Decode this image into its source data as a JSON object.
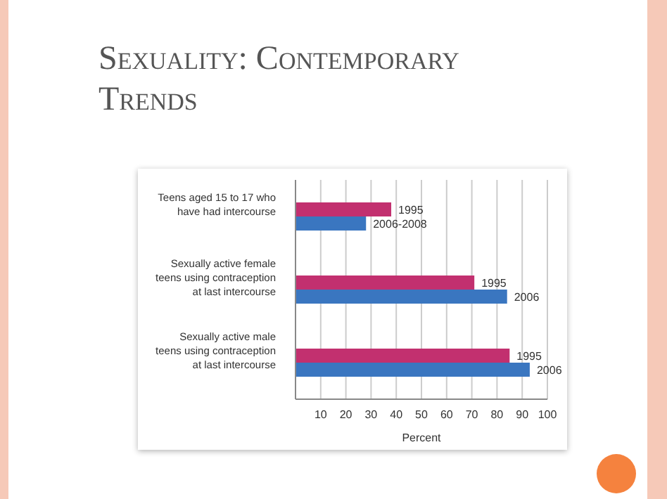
{
  "chart_data": {
    "type": "bar",
    "orientation": "horizontal",
    "title": "Sexuality: Contemporary Trends",
    "xlabel": "Percent",
    "categories": [
      "Teens aged 15 to 17 who have had intercourse",
      "Sexually active female teens using contraception at last intercourse",
      "Sexually active male teens using contraception at last intercourse"
    ],
    "series": [
      {
        "color": "#c2306f",
        "values": [
          38,
          71,
          85
        ]
      },
      {
        "color": "#3a76c0",
        "values": [
          28,
          84,
          93
        ]
      }
    ],
    "annotations": [
      "1995",
      "2006-2008",
      "1995",
      "2006",
      "1995",
      "2006"
    ],
    "xlim": [
      0,
      100
    ],
    "xticks": [
      {
        "value": 0,
        "label": null
      },
      10,
      20,
      30,
      40,
      50,
      60,
      70,
      80,
      90,
      100
    ],
    "grid": "x",
    "legend": false
  }
}
